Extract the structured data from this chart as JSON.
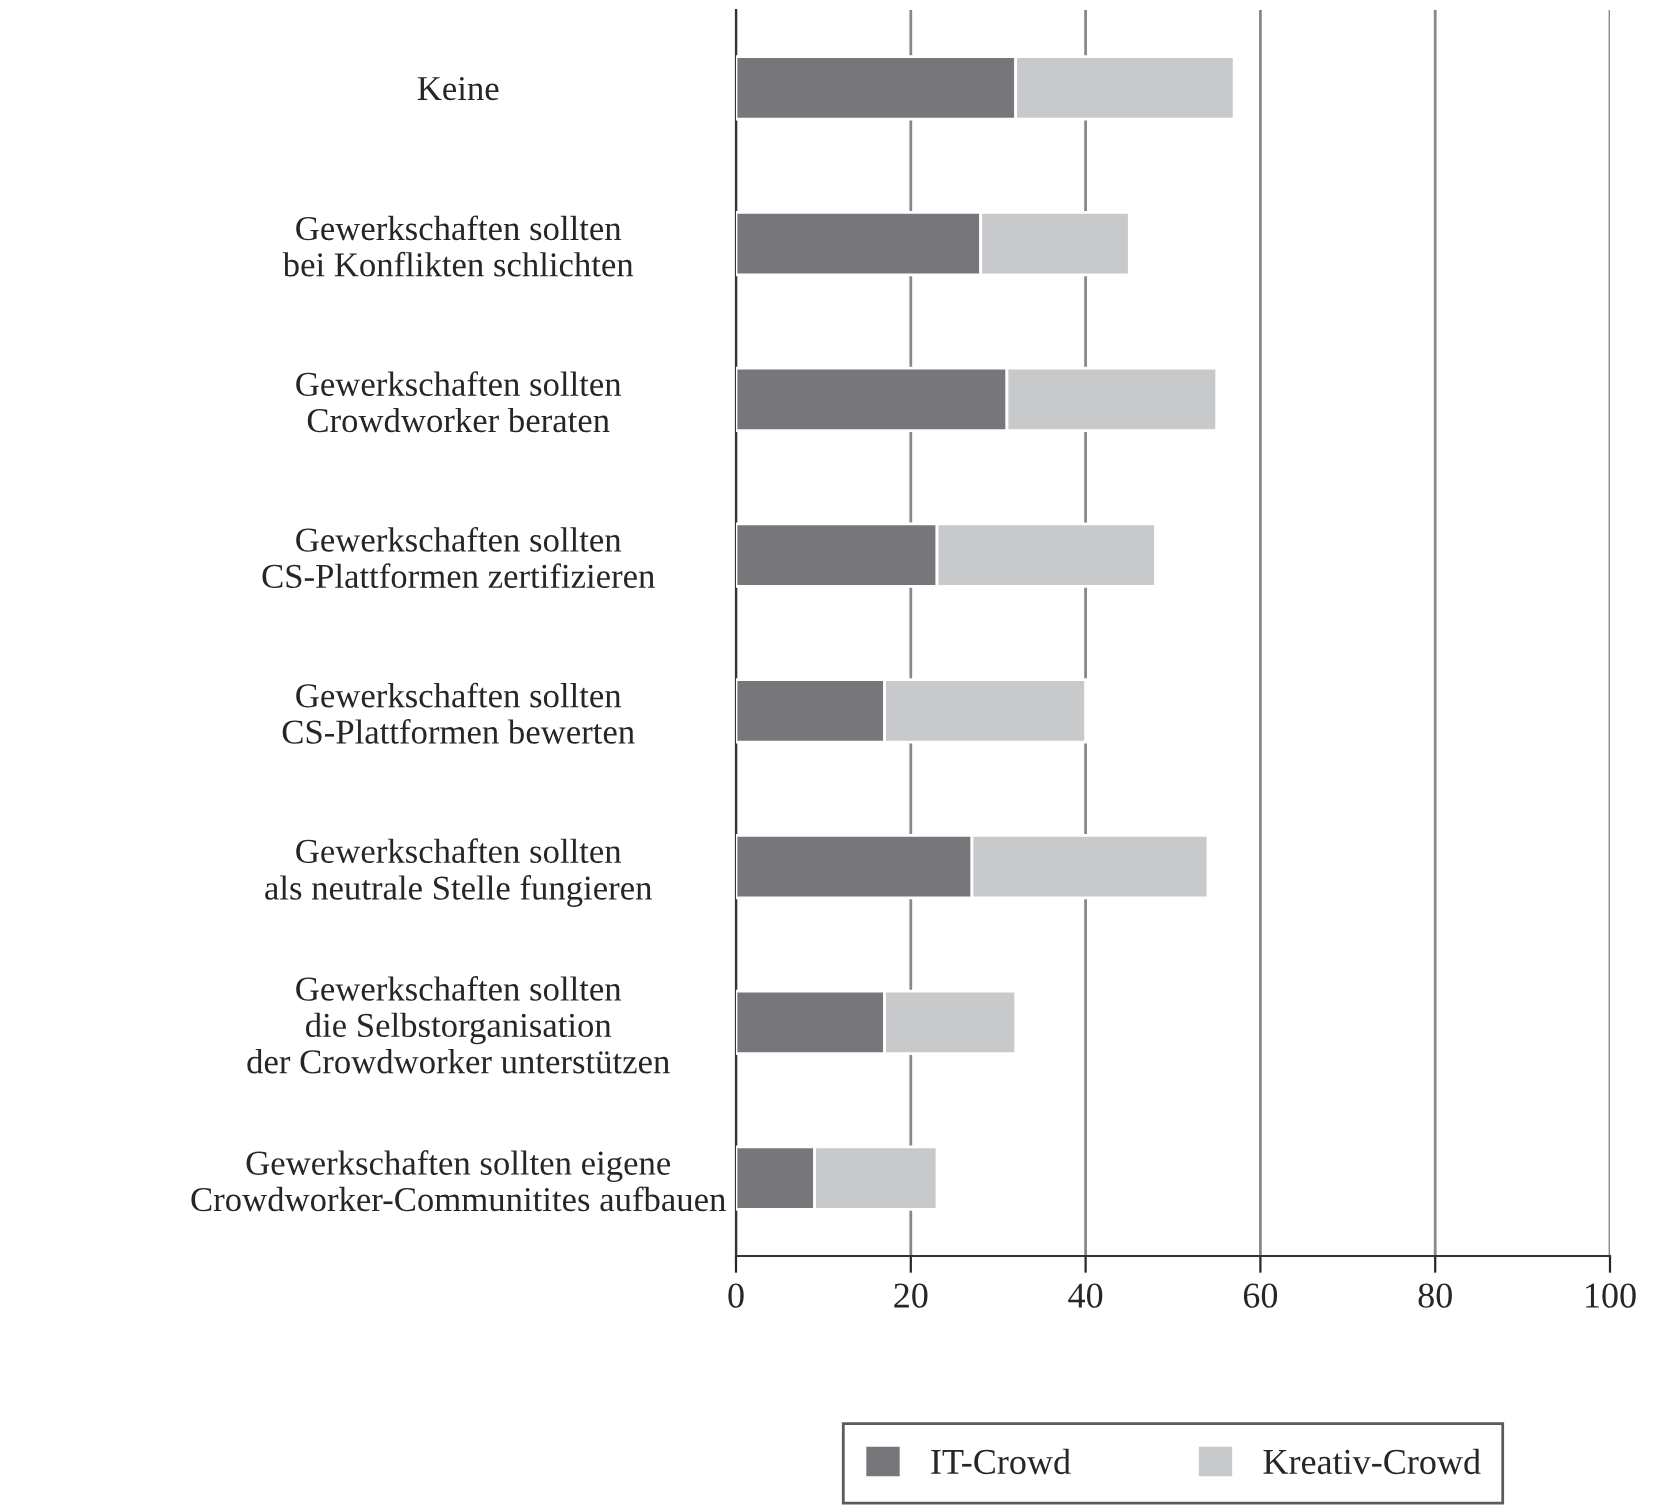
{
  "chart_data": {
    "type": "bar",
    "orientation": "horizontal",
    "stacked": true,
    "categories": [
      "Keine",
      "Gewerkschaften sollten\nbei Konflikten schlichten",
      "Gewerkschaften sollten\nCrowdworker beraten",
      "Gewerkschaften sollten\nCS-Plattformen zertifizieren",
      "Gewerkschaften sollten\nCS-Plattformen bewerten",
      "Gewerkschaften sollten\nals neutrale Stelle fungieren",
      "Gewerkschaften sollten\ndie Selbstorganisation\nder Crowdworker unterstützen",
      "Gewerkschaften sollten eigene\nCrowdworker-Communitites aufbauen"
    ],
    "series": [
      {
        "name": "IT-Crowd",
        "color": "#77777b",
        "values": [
          32,
          28,
          31,
          23,
          17,
          27,
          17,
          9
        ]
      },
      {
        "name": "Kreativ-Crowd",
        "color": "#c8c9cb",
        "values": [
          25,
          17,
          24,
          25,
          23,
          27,
          15,
          14
        ]
      }
    ],
    "xlim": [
      0,
      100
    ],
    "xticks": [
      0,
      20,
      40,
      60,
      80,
      100
    ],
    "grid": "x",
    "legend": "bottom"
  }
}
